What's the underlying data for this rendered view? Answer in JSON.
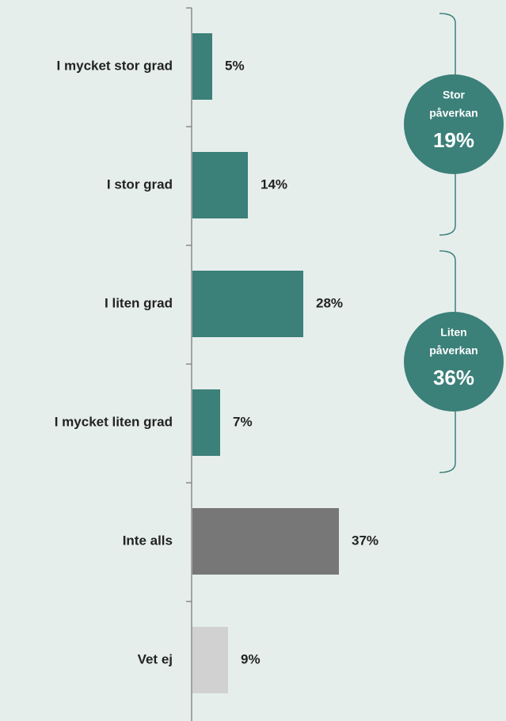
{
  "chart_data": {
    "type": "bar",
    "orientation": "horizontal",
    "categories": [
      "I mycket stor grad",
      "I stor grad",
      "I liten grad",
      "I mycket liten grad",
      "Inte alls",
      "Vet ej"
    ],
    "values": [
      5,
      14,
      28,
      7,
      37,
      9
    ],
    "value_labels": [
      "5%",
      "14%",
      "28%",
      "7%",
      "37%",
      "9%"
    ],
    "colors": [
      "#3b8079",
      "#3b8079",
      "#3b8079",
      "#3b8079",
      "#777777",
      "#d1d1d1"
    ],
    "annotations": [
      {
        "label_lines": [
          "Stor",
          "påverkan"
        ],
        "value": 19,
        "value_label": "19%",
        "from": 0,
        "to": 1
      },
      {
        "label_lines": [
          "Liten",
          "påverkan"
        ],
        "value": 36,
        "value_label": "36%",
        "from": 2,
        "to": 3
      }
    ]
  }
}
